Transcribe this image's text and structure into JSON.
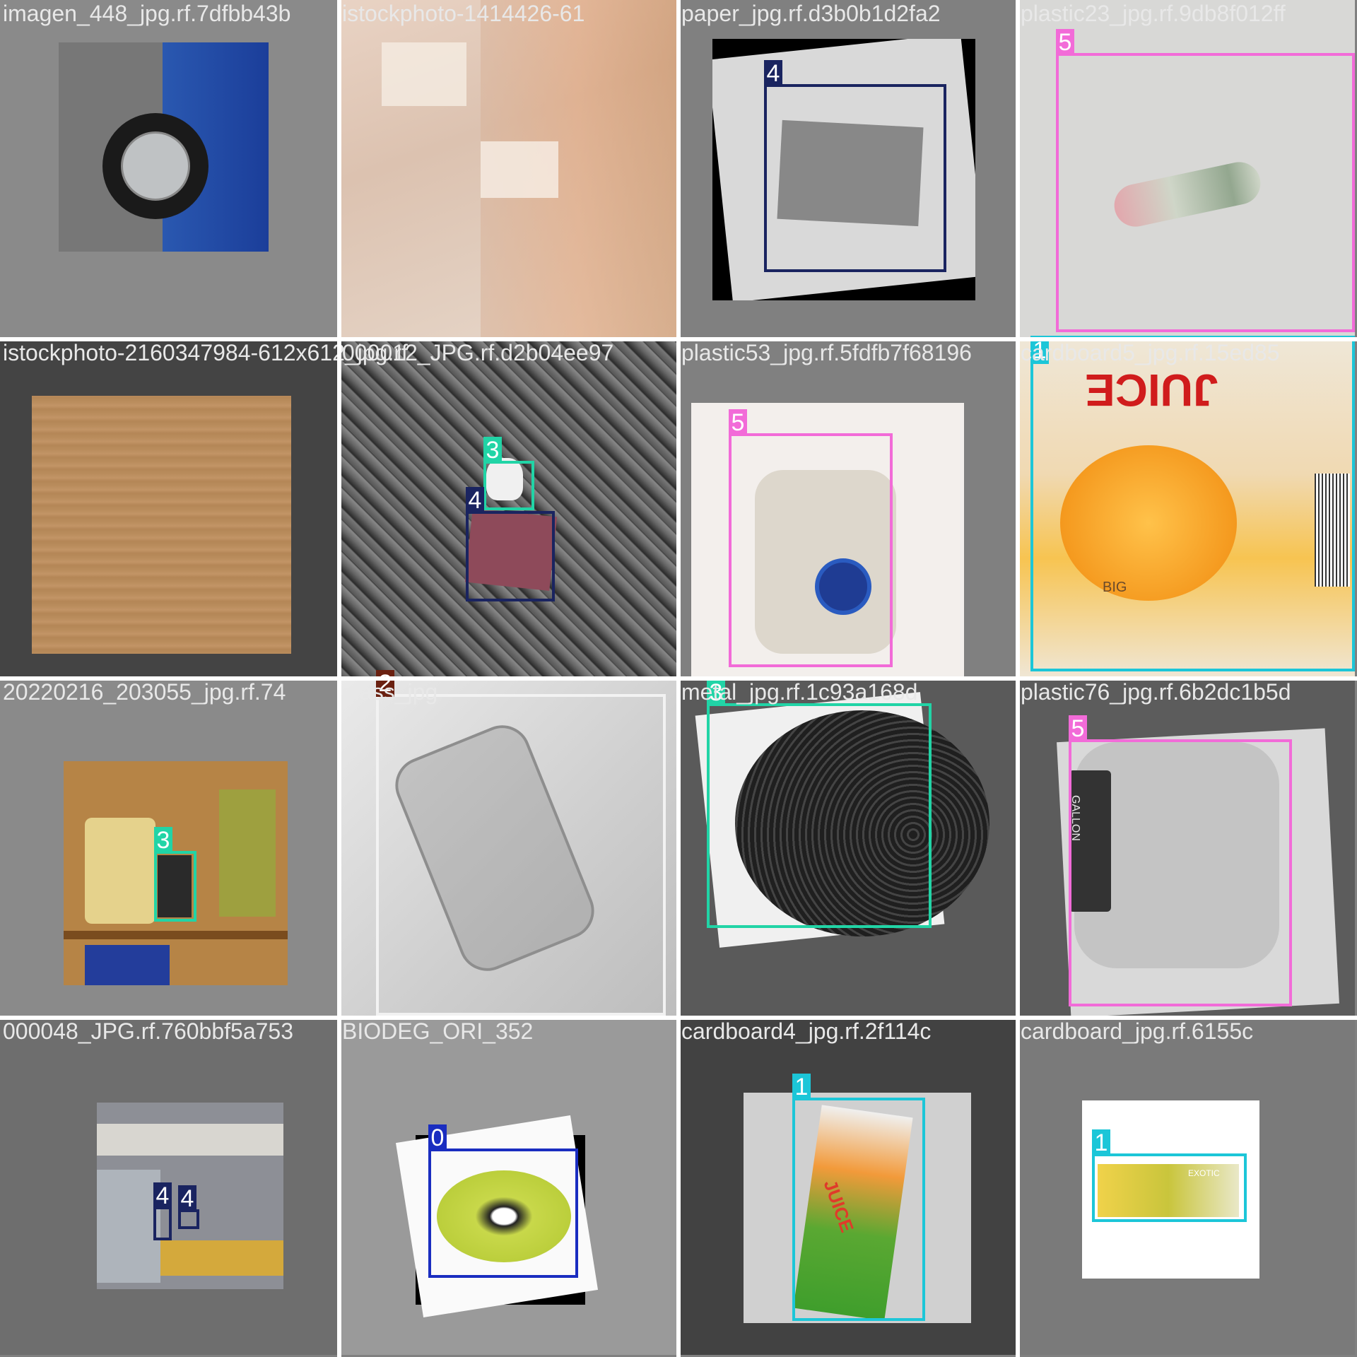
{
  "tiles": [
    {
      "filename": "imagen_448_jpg.rf.7dfbb43b"
    },
    {
      "filename": "istockphoto-1414426-61"
    },
    {
      "filename": "paper_jpg.rf.d3b0b1d2fa2"
    },
    {
      "filename": "plastic23_jpg.rf.9db8f012ff"
    },
    {
      "filename": "istockphoto-2160347984-612x612_jpg.rf"
    },
    {
      "filename": "000012_JPG.rf.d2b04ee97"
    },
    {
      "filename": "plastic53_jpg.rf.5fdfb7f68196"
    },
    {
      "filename": "cardboard5_jpg.rf.15ed85"
    },
    {
      "filename": "20220216_203055_jpg.rf.74"
    },
    {
      "filename": "glass_jpg"
    },
    {
      "filename": "metal_jpg.rf.1c93a168d"
    },
    {
      "filename": "plastic76_jpg.rf.6b2dc1b5d"
    },
    {
      "filename": "000048_JPG.rf.760bbf5a753"
    },
    {
      "filename": "BIODEG_ORI_352"
    },
    {
      "filename": "cardboard4_jpg.rf.2f114c"
    },
    {
      "filename": "cardboard_jpg.rf.6155c"
    }
  ],
  "labels": {
    "t2": "4",
    "t3": "5",
    "t5a": "3",
    "t5b": "4",
    "t6": "5",
    "t7": "1",
    "t8": "3",
    "t9": "2",
    "t10": "3",
    "t11": "5",
    "t12a": "4",
    "t12b": "4",
    "t13": "0",
    "t14": "1",
    "t15": "1"
  },
  "class_colors": {
    "0": "#1a2dc0",
    "1": "#1cc6d8",
    "2": "#6a2010",
    "3": "#21d4a6",
    "4": "#1a2460",
    "5": "#f26bd8"
  },
  "photo_text": {
    "t7_juice": "JUICE",
    "t7_sub": "BIG",
    "t11_brand": "GALLON",
    "t14_juice": "JUICE",
    "t15_brand": "EXOTIC"
  }
}
